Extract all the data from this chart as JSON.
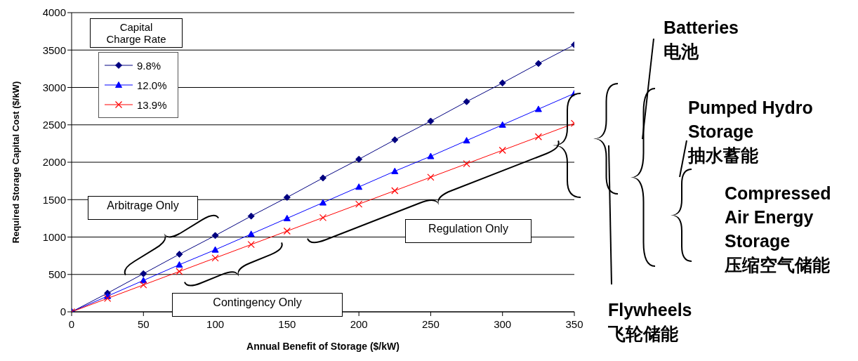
{
  "chart_data": {
    "type": "line",
    "xlabel": "Annual Benefit of Storage ($/kW)",
    "ylabel": "Required Storage Capital Cost ($/kW)",
    "legend_title": "Capital\nCharge Rate",
    "x": [
      0,
      25,
      50,
      75,
      100,
      125,
      150,
      175,
      200,
      225,
      250,
      275,
      300,
      325,
      350
    ],
    "series": [
      {
        "name": "9.8%",
        "color": "#000080",
        "marker": "diamond",
        "values": [
          0,
          250,
          510,
          770,
          1020,
          1280,
          1530,
          1790,
          2040,
          2300,
          2550,
          2810,
          3060,
          3320,
          3570
        ]
      },
      {
        "name": "12.0%",
        "color": "#0000ff",
        "marker": "triangle",
        "values": [
          0,
          210,
          420,
          630,
          830,
          1040,
          1250,
          1460,
          1670,
          1880,
          2080,
          2290,
          2500,
          2710,
          2920
        ]
      },
      {
        "name": "13.9%",
        "color": "#ff0000",
        "marker": "cross",
        "values": [
          0,
          180,
          360,
          540,
          720,
          900,
          1080,
          1260,
          1440,
          1620,
          1800,
          1980,
          2160,
          2340,
          2520
        ]
      }
    ],
    "xlim": [
      0,
      350
    ],
    "xticks": [
      0,
      50,
      100,
      150,
      200,
      250,
      300,
      350
    ],
    "ylim": [
      0,
      4000
    ],
    "yticks": [
      0,
      500,
      1000,
      1500,
      2000,
      2500,
      3000,
      3500,
      4000
    ],
    "grid": "y",
    "legend": "top left",
    "annotations": [
      "Arbitrage Only",
      "Contingency Only",
      "Regulation Only",
      "Batteries\n电池",
      "Pumped Hydro\nStorage\n抽水蓄能",
      "Compressed\nAir Energy\nStorage\n压缩空气储能",
      "Flywheels\n飞轮储能"
    ]
  }
}
